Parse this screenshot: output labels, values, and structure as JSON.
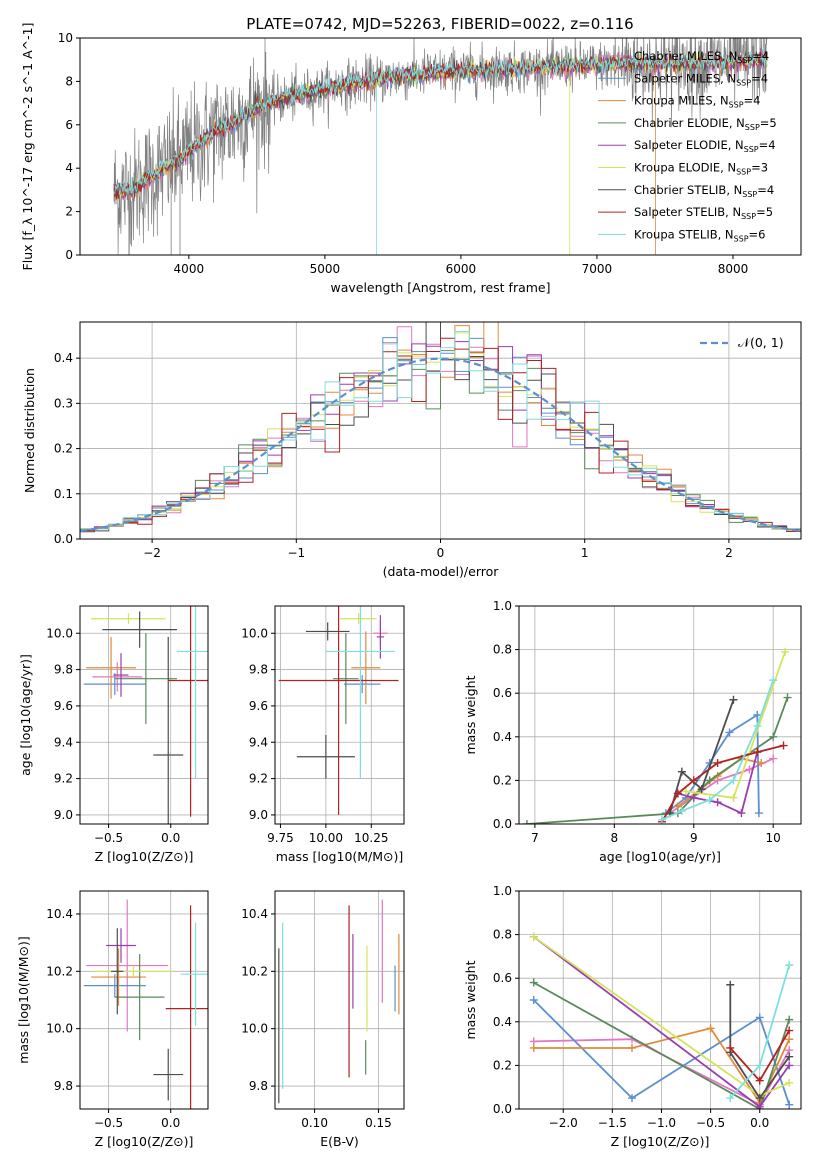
{
  "figure_title": "PLATE=0742, MJD=52263, FIBERID=0022, z=0.116",
  "colors": {
    "chabrier_miles": "#e377c2",
    "salpeter_miles": "#5b8fd0",
    "kroupa_miles": "#e08a3c",
    "chabrier_elodie": "#5a8a5a",
    "salpeter_elodie": "#9b3db0",
    "kroupa_elodie": "#d5e35a",
    "chabrier_stelib": "#4d4d4d",
    "salpeter_stelib": "#b22222",
    "kroupa_stelib": "#7fdede",
    "gaussian": "#5b8fd0",
    "data": "#808080"
  },
  "chart_data": [
    {
      "id": "spectrum",
      "type": "line",
      "title": "PLATE=0742, MJD=52263, FIBERID=0022, z=0.116",
      "xlabel": "wavelength [Angstrom, rest frame]",
      "ylabel": "Flux [f_λ 10^-17 erg cm^-2 s^-1 A^-1]",
      "xlim": [
        3200,
        8500
      ],
      "ylim": [
        0,
        10
      ],
      "xticks": [
        4000,
        5000,
        6000,
        7000,
        8000
      ],
      "yticks": [
        0,
        2,
        4,
        6,
        8,
        10
      ],
      "legend_position": "right",
      "legend": [
        "Chabrier MILES, N_SSP=4",
        "Salpeter MILES, N_SSP=4",
        "Kroupa MILES, N_SSP=4",
        "Chabrier ELODIE, N_SSP=5",
        "Salpeter ELODIE, N_SSP=4",
        "Kroupa ELODIE, N_SSP=3",
        "Chabrier STELIB, N_SSP=4",
        "Salpeter STELIB, N_SSP=5",
        "Kroupa STELIB, N_SSP=6"
      ],
      "continuum": [
        [
          3450,
          2.9
        ],
        [
          3600,
          3.0
        ],
        [
          3700,
          3.5
        ],
        [
          3800,
          3.9
        ],
        [
          3900,
          4.3
        ],
        [
          4000,
          4.8
        ],
        [
          4100,
          5.2
        ],
        [
          4200,
          5.7
        ],
        [
          4300,
          6.0
        ],
        [
          4400,
          6.4
        ],
        [
          4500,
          6.8
        ],
        [
          4700,
          7.2
        ],
        [
          4900,
          7.5
        ],
        [
          5100,
          7.8
        ],
        [
          5300,
          8.0
        ],
        [
          5500,
          8.2
        ],
        [
          5800,
          8.4
        ],
        [
          6100,
          8.5
        ],
        [
          6500,
          8.6
        ],
        [
          6800,
          8.7
        ],
        [
          7200,
          8.8
        ],
        [
          7600,
          8.8
        ],
        [
          8000,
          8.9
        ],
        [
          8250,
          9.0
        ]
      ]
    },
    {
      "id": "residuals",
      "type": "histogram",
      "xlabel": "(data-model)/error",
      "ylabel": "Normed distribution",
      "xlim": [
        -2.5,
        2.5
      ],
      "ylim": [
        0,
        0.48
      ],
      "xticks": [
        -2,
        -1,
        0,
        1,
        2
      ],
      "yticks": [
        0.0,
        0.1,
        0.2,
        0.3,
        0.4
      ],
      "legend": [
        "𝒩(0, 1)"
      ],
      "legend_position": "upper right",
      "bin_width": 0.1
    },
    {
      "id": "age-vs-Z",
      "type": "errorbar",
      "xlabel": "Z [log10(Z/Z⊙)]",
      "ylabel": "age  [log10(age/yr)]",
      "xlim": [
        -0.73,
        0.3
      ],
      "ylim": [
        8.95,
        10.15
      ],
      "xticks": [
        -0.5,
        0.0
      ],
      "yticks": [
        9.0,
        9.2,
        9.4,
        9.6,
        9.8,
        10.0
      ],
      "points": [
        {
          "series": "Chabrier MILES",
          "x": -0.43,
          "y": 9.76,
          "xerr": 0.2,
          "yerr": 0.08
        },
        {
          "series": "Salpeter MILES",
          "x": -0.45,
          "y": 9.72,
          "xerr": 0.25,
          "yerr": 0.06
        },
        {
          "series": "Kroupa MILES",
          "x": -0.48,
          "y": 9.81,
          "xerr": 0.2,
          "yerr": 0.17
        },
        {
          "series": "Chabrier ELODIE",
          "x": -0.2,
          "y": 9.75,
          "xerr": 0.25,
          "yerr": 0.25
        },
        {
          "series": "Salpeter ELODIE",
          "x": -0.4,
          "y": 9.77,
          "xerr": 0.06,
          "yerr": 0.12
        },
        {
          "series": "Kroupa ELODIE",
          "x": -0.34,
          "y": 10.08,
          "xerr": 0.3,
          "yerr": 0.03
        },
        {
          "series": "Chabrier STELIB",
          "x": -0.25,
          "y": 10.02,
          "xerr": 0.3,
          "yerr": 0.1
        },
        {
          "series": "Chabrier STELIB",
          "x": -0.02,
          "y": 9.33,
          "xerr": 0.12,
          "yerr": 0.65
        },
        {
          "series": "Salpeter STELIB",
          "x": 0.16,
          "y": 9.74,
          "xerr": 0.18,
          "yerr": 0.75
        },
        {
          "series": "Kroupa STELIB",
          "x": 0.2,
          "y": 9.9,
          "xerr": 0.15,
          "yerr": 0.7
        }
      ]
    },
    {
      "id": "age-vs-mass",
      "type": "errorbar",
      "xlabel": "mass [log10(M/M⊙)]",
      "ylabel": "",
      "xlim": [
        9.72,
        10.43
      ],
      "ylim": [
        8.95,
        10.15
      ],
      "xticks": [
        9.75,
        10.0,
        10.25
      ],
      "yticks": [
        9.0,
        9.2,
        9.4,
        9.6,
        9.8,
        10.0
      ],
      "points": [
        {
          "series": "Chabrier MILES",
          "x": 10.3,
          "y": 10.0,
          "xerr": 0.04,
          "yerr": 0.07
        },
        {
          "series": "Salpeter MILES",
          "x": 10.2,
          "y": 9.72,
          "xerr": 0.1,
          "yerr": 0.05
        },
        {
          "series": "Kroupa MILES",
          "x": 10.22,
          "y": 9.81,
          "xerr": 0.08,
          "yerr": 0.2
        },
        {
          "series": "Chabrier ELODIE",
          "x": 10.11,
          "y": 9.75,
          "xerr": 0.07,
          "yerr": 0.25
        },
        {
          "series": "Salpeter ELODIE",
          "x": 10.3,
          "y": 9.98,
          "xerr": 0.02,
          "yerr": 0.12
        },
        {
          "series": "Kroupa ELODIE",
          "x": 10.18,
          "y": 10.08,
          "xerr": 0.1,
          "yerr": 0.03
        },
        {
          "series": "Chabrier STELIB",
          "x": 10.01,
          "y": 10.01,
          "xerr": 0.12,
          "yerr": 0.05
        },
        {
          "series": "Chabrier STELIB",
          "x": 10.0,
          "y": 9.32,
          "xerr": 0.16,
          "yerr": 0.12
        },
        {
          "series": "Salpeter STELIB",
          "x": 10.07,
          "y": 9.74,
          "xerr": 0.33,
          "yerr": 0.74
        },
        {
          "series": "Kroupa STELIB",
          "x": 10.19,
          "y": 9.9,
          "xerr": 0.19,
          "yerr": 0.7
        }
      ]
    },
    {
      "id": "mass-weight-vs-age",
      "type": "line",
      "xlabel": "age  [log10(age/yr)]",
      "ylabel": "mass weight",
      "xlim": [
        6.8,
        10.35
      ],
      "ylim": [
        0,
        1
      ],
      "xticks": [
        7,
        8,
        9,
        10
      ],
      "yticks": [
        0.0,
        0.2,
        0.4,
        0.6,
        0.8,
        1.0
      ],
      "series": [
        {
          "name": "Chabrier MILES",
          "points": [
            [
              8.7,
              0.05
            ],
            [
              9.3,
              0.2
            ],
            [
              9.7,
              0.25
            ],
            [
              10.0,
              0.3
            ]
          ]
        },
        {
          "name": "Salpeter MILES",
          "points": [
            [
              9.82,
              0.05
            ],
            [
              9.8,
              0.5
            ],
            [
              9.45,
              0.42
            ],
            [
              9.2,
              0.28
            ],
            [
              8.9,
              0.12
            ],
            [
              8.65,
              0.05
            ]
          ]
        },
        {
          "name": "Kroupa MILES",
          "points": [
            [
              8.8,
              0.08
            ],
            [
              9.3,
              0.22
            ],
            [
              9.6,
              0.3
            ],
            [
              9.85,
              0.28
            ]
          ]
        },
        {
          "name": "Chabrier ELODIE",
          "points": [
            [
              6.9,
              0.0
            ],
            [
              8.8,
              0.05
            ],
            [
              9.2,
              0.2
            ],
            [
              10.0,
              0.4
            ],
            [
              10.18,
              0.58
            ]
          ]
        },
        {
          "name": "Salpeter ELODIE",
          "points": [
            [
              8.8,
              0.14
            ],
            [
              9.0,
              0.12
            ],
            [
              9.3,
              0.1
            ],
            [
              9.6,
              0.05
            ],
            [
              9.8,
              0.33
            ]
          ]
        },
        {
          "name": "Kroupa ELODIE",
          "points": [
            [
              8.9,
              0.15
            ],
            [
              9.5,
              0.12
            ],
            [
              10.15,
              0.79
            ]
          ]
        },
        {
          "name": "Chabrier STELIB",
          "points": [
            [
              8.7,
              0.05
            ],
            [
              8.85,
              0.24
            ],
            [
              9.1,
              0.16
            ],
            [
              9.5,
              0.57
            ]
          ]
        },
        {
          "name": "Salpeter STELIB",
          "points": [
            [
              8.6,
              0.01
            ],
            [
              8.8,
              0.14
            ],
            [
              9.0,
              0.2
            ],
            [
              9.3,
              0.28
            ],
            [
              9.8,
              0.33
            ],
            [
              10.13,
              0.36
            ]
          ]
        },
        {
          "name": "Kroupa STELIB",
          "points": [
            [
              8.6,
              0.02
            ],
            [
              8.85,
              0.06
            ],
            [
              9.2,
              0.11
            ],
            [
              9.5,
              0.2
            ],
            [
              9.8,
              0.45
            ],
            [
              10.0,
              0.66
            ]
          ]
        }
      ]
    },
    {
      "id": "mass-vs-Z",
      "type": "errorbar",
      "xlabel": "Z [log10(Z/Z⊙)]",
      "ylabel": "mass [log10(M/M⊙)]",
      "xlim": [
        -0.73,
        0.3
      ],
      "ylim": [
        9.72,
        10.48
      ],
      "xticks": [
        -0.5,
        0.0
      ],
      "yticks": [
        9.8,
        10.0,
        10.2,
        10.4
      ],
      "points": [
        {
          "series": "Chabrier MILES",
          "x": -0.35,
          "y": 10.22,
          "xerr": 0.33,
          "yerr": 0.23
        },
        {
          "series": "Salpeter MILES",
          "x": -0.45,
          "y": 10.15,
          "xerr": 0.25,
          "yerr": 0.04
        },
        {
          "series": "Kroupa MILES",
          "x": -0.42,
          "y": 10.18,
          "xerr": 0.22,
          "yerr": 0.1
        },
        {
          "series": "Chabrier ELODIE",
          "x": -0.25,
          "y": 10.11,
          "xerr": 0.2,
          "yerr": 0.15
        },
        {
          "series": "Salpeter ELODIE",
          "x": -0.4,
          "y": 10.29,
          "xerr": 0.12,
          "yerr": 0.06
        },
        {
          "series": "Kroupa ELODIE",
          "x": -0.3,
          "y": 10.2,
          "xerr": 0.32,
          "yerr": 0.02
        },
        {
          "series": "Chabrier STELIB",
          "x": -0.43,
          "y": 10.2,
          "xerr": 0.05,
          "yerr": 0.15
        },
        {
          "series": "Chabrier STELIB",
          "x": -0.02,
          "y": 9.84,
          "xerr": 0.12,
          "yerr": 0.09
        },
        {
          "series": "Salpeter STELIB",
          "x": 0.16,
          "y": 10.07,
          "xerr": 0.2,
          "yerr": 0.36
        },
        {
          "series": "Kroupa STELIB",
          "x": 0.2,
          "y": 10.19,
          "xerr": 0.12,
          "yerr": 0.18
        }
      ]
    },
    {
      "id": "mass-vs-ebv",
      "type": "errorbar",
      "xlabel": "E(B-V)",
      "ylabel": "",
      "xlim": [
        0.069,
        0.17
      ],
      "ylim": [
        9.72,
        10.48
      ],
      "xticks": [
        0.1,
        0.15
      ],
      "yticks": [
        9.8,
        10.0,
        10.2,
        10.4
      ],
      "points": [
        {
          "series": "Chabrier STELIB",
          "x": 0.072,
          "y": 10.01,
          "yerr": 0.27
        },
        {
          "series": "Kroupa STELIB",
          "x": 0.075,
          "y": 10.08,
          "yerr": 0.29
        },
        {
          "series": "Salpeter STELIB",
          "x": 0.127,
          "y": 10.13,
          "yerr": 0.3
        },
        {
          "series": "Salpeter ELODIE",
          "x": 0.13,
          "y": 10.2,
          "yerr": 0.13
        },
        {
          "series": "Chabrier ELODIE",
          "x": 0.14,
          "y": 9.9,
          "yerr": 0.06
        },
        {
          "series": "Kroupa ELODIE",
          "x": 0.141,
          "y": 10.14,
          "yerr": 0.15
        },
        {
          "series": "Chabrier MILES",
          "x": 0.153,
          "y": 10.27,
          "yerr": 0.18
        },
        {
          "series": "Salpeter MILES",
          "x": 0.163,
          "y": 10.14,
          "yerr": 0.08
        },
        {
          "series": "Kroupa MILES",
          "x": 0.166,
          "y": 10.19,
          "yerr": 0.14
        }
      ]
    },
    {
      "id": "mass-weight-vs-Z",
      "type": "line",
      "xlabel": "Z [log10(Z/Z⊙)]",
      "ylabel": "mass weight",
      "xlim": [
        -2.45,
        0.42
      ],
      "ylim": [
        0,
        1
      ],
      "xticks": [
        -2.0,
        -1.5,
        -1.0,
        -0.5,
        0.0
      ],
      "yticks": [
        0.0,
        0.2,
        0.4,
        0.6,
        0.8,
        1.0
      ],
      "series": [
        {
          "name": "Chabrier MILES",
          "points": [
            [
              -2.3,
              0.31
            ],
            [
              -1.3,
              0.32
            ],
            [
              0.0,
              0.02
            ],
            [
              0.3,
              0.27
            ]
          ]
        },
        {
          "name": "Salpeter MILES",
          "points": [
            [
              -2.3,
              0.5
            ],
            [
              -1.3,
              0.05
            ],
            [
              0.0,
              0.42
            ],
            [
              0.3,
              0.02
            ]
          ]
        },
        {
          "name": "Kroupa MILES",
          "points": [
            [
              -2.3,
              0.28
            ],
            [
              -1.3,
              0.28
            ],
            [
              -0.5,
              0.37
            ],
            [
              0.0,
              0.03
            ],
            [
              0.3,
              0.32
            ]
          ]
        },
        {
          "name": "Chabrier ELODIE",
          "points": [
            [
              -2.3,
              0.58
            ],
            [
              0.0,
              0.0
            ],
            [
              0.3,
              0.41
            ]
          ]
        },
        {
          "name": "Salpeter ELODIE",
          "points": [
            [
              -2.3,
              0.79
            ],
            [
              0.0,
              0.01
            ],
            [
              0.3,
              0.2
            ]
          ]
        },
        {
          "name": "Kroupa ELODIE",
          "points": [
            [
              -2.3,
              0.79
            ],
            [
              0.0,
              0.06
            ],
            [
              0.3,
              0.12
            ]
          ]
        },
        {
          "name": "Chabrier STELIB",
          "points": [
            [
              -0.3,
              0.57
            ],
            [
              -0.3,
              0.26
            ],
            [
              0.0,
              0.05
            ],
            [
              0.3,
              0.24
            ]
          ]
        },
        {
          "name": "Salpeter STELIB",
          "points": [
            [
              -0.3,
              0.28
            ],
            [
              0.0,
              0.13
            ],
            [
              0.3,
              0.36
            ]
          ]
        },
        {
          "name": "Kroupa STELIB",
          "points": [
            [
              -0.3,
              0.05
            ],
            [
              0.0,
              0.2
            ],
            [
              0.3,
              0.66
            ]
          ]
        }
      ]
    }
  ]
}
